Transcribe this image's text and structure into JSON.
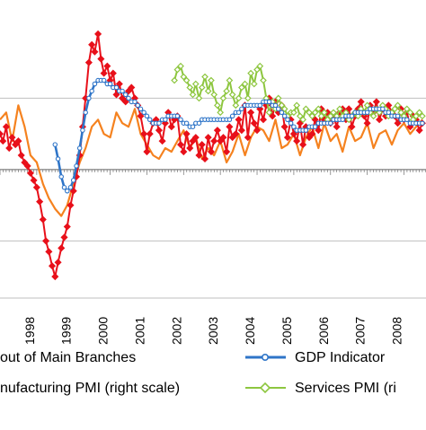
{
  "chart_data": {
    "type": "line",
    "title": "",
    "xlabel": "",
    "ylabel": "",
    "x_ticks": [
      "1998",
      "1999",
      "2000",
      "2001",
      "2002",
      "2003",
      "2004",
      "2005",
      "2006",
      "2007",
      "2008"
    ],
    "x_range": [
      1997.0,
      2008.6
    ],
    "y_range": [
      -3.6,
      4.4
    ],
    "y_gridlines": [
      2.0,
      -2.0
    ],
    "zero_line": 0,
    "grid": true,
    "legend_position": "bottom",
    "series": [
      {
        "name": "Output of Main Branches",
        "legend_label": "out of Main Branches",
        "color": "#e8101a",
        "marker": "diamond",
        "x": [
          1997.0,
          1997.08,
          1997.17,
          1997.25,
          1997.33,
          1997.42,
          1997.5,
          1997.58,
          1997.67,
          1997.75,
          1997.83,
          1997.92,
          1998.0,
          1998.08,
          1998.17,
          1998.25,
          1998.33,
          1998.42,
          1998.5,
          1998.58,
          1998.67,
          1998.75,
          1998.83,
          1998.92,
          1999.0,
          1999.08,
          1999.17,
          1999.25,
          1999.33,
          1999.42,
          1999.5,
          1999.58,
          1999.67,
          1999.75,
          1999.83,
          1999.92,
          2000.0,
          2000.08,
          2000.17,
          2000.25,
          2000.33,
          2000.42,
          2000.5,
          2000.58,
          2000.67,
          2000.75,
          2000.83,
          2000.92,
          2001.0,
          2001.08,
          2001.17,
          2001.25,
          2001.33,
          2001.42,
          2001.5,
          2001.58,
          2001.67,
          2001.75,
          2001.83,
          2001.92,
          2002.0,
          2002.08,
          2002.17,
          2002.25,
          2002.33,
          2002.42,
          2002.5,
          2002.58,
          2002.67,
          2002.75,
          2002.83,
          2002.92,
          2003.0,
          2003.08,
          2003.17,
          2003.25,
          2003.33,
          2003.42,
          2003.5,
          2003.58,
          2003.67,
          2003.75,
          2003.83,
          2003.92,
          2004.0,
          2004.08,
          2004.17,
          2004.25,
          2004.33,
          2004.42,
          2004.5,
          2004.58,
          2004.67,
          2004.75,
          2004.83,
          2004.92,
          2005.0,
          2005.08,
          2005.17,
          2005.25,
          2005.33,
          2005.42,
          2005.5,
          2005.58,
          2005.67,
          2005.75,
          2005.83,
          2005.92,
          2006.0,
          2006.08,
          2006.17,
          2006.25,
          2006.33,
          2006.42,
          2006.5,
          2006.58,
          2006.67,
          2006.75,
          2006.83,
          2006.92,
          2007.0,
          2007.08,
          2007.17,
          2007.25,
          2007.33,
          2007.42,
          2007.5,
          2007.58,
          2007.67,
          2007.75,
          2007.83,
          2007.92,
          2008.0,
          2008.08,
          2008.17,
          2008.25,
          2008.33,
          2008.42,
          2008.5
        ],
        "values": [
          1.0,
          0.8,
          1.2,
          0.6,
          0.9,
          0.7,
          0.8,
          0.4,
          0.2,
          0.1,
          -0.1,
          -0.3,
          -0.5,
          -0.9,
          -1.4,
          -2.0,
          -2.3,
          -2.7,
          -3.0,
          -2.6,
          -2.2,
          -1.9,
          -1.6,
          -1.0,
          -0.6,
          -0.2,
          0.4,
          1.2,
          2.0,
          3.0,
          3.5,
          3.3,
          3.8,
          3.1,
          2.7,
          2.9,
          2.5,
          2.7,
          2.1,
          2.4,
          2.0,
          1.9,
          2.2,
          2.3,
          2.0,
          1.8,
          1.5,
          1.0,
          0.5,
          1.0,
          1.3,
          1.4,
          1.1,
          0.8,
          1.3,
          1.6,
          1.2,
          1.4,
          1.5,
          0.7,
          0.5,
          1.0,
          0.6,
          0.8,
          0.9,
          0.4,
          0.7,
          0.3,
          0.9,
          0.5,
          0.8,
          1.1,
          0.8,
          0.9,
          0.5,
          1.2,
          0.9,
          1.0,
          1.4,
          1.1,
          1.8,
          0.9,
          1.6,
          1.3,
          1.1,
          1.7,
          1.4,
          1.8,
          2.0,
          1.5,
          1.9,
          1.6,
          1.8,
          1.2,
          0.9,
          1.4,
          1.0,
          0.8,
          1.3,
          0.7,
          1.2,
          0.9,
          1.0,
          1.4,
          1.1,
          1.7,
          1.4,
          1.6,
          1.3,
          1.5,
          1.2,
          1.6,
          1.7,
          1.4,
          1.7,
          1.2,
          1.5,
          1.7,
          1.9,
          1.5,
          1.3,
          1.8,
          1.6,
          1.9,
          1.4,
          1.7,
          1.5,
          1.8,
          1.6,
          1.5,
          1.3,
          1.7,
          1.4,
          1.6,
          1.2,
          1.5,
          1.4,
          1.1,
          1.3
        ]
      },
      {
        "name": "GDP Indicator",
        "legend_label": "GDP Indicator",
        "color": "#2f75c8",
        "marker": "circle",
        "x": [
          1998.5,
          1998.58,
          1998.67,
          1998.75,
          1998.83,
          1998.92,
          1999.0,
          1999.08,
          1999.17,
          1999.25,
          1999.33,
          1999.42,
          1999.5,
          1999.58,
          1999.67,
          1999.75,
          1999.83,
          1999.92,
          2000.0,
          2000.08,
          2000.17,
          2000.25,
          2000.33,
          2000.42,
          2000.5,
          2000.58,
          2000.67,
          2000.75,
          2000.83,
          2000.92,
          2001.0,
          2001.08,
          2001.17,
          2001.25,
          2001.33,
          2001.42,
          2001.5,
          2001.58,
          2001.67,
          2001.75,
          2001.83,
          2001.92,
          2002.0,
          2002.08,
          2002.17,
          2002.25,
          2002.33,
          2002.42,
          2002.5,
          2002.58,
          2002.67,
          2002.75,
          2002.83,
          2002.92,
          2003.0,
          2003.08,
          2003.17,
          2003.25,
          2003.33,
          2003.42,
          2003.5,
          2003.58,
          2003.67,
          2003.75,
          2003.83,
          2003.92,
          2004.0,
          2004.08,
          2004.17,
          2004.25,
          2004.33,
          2004.42,
          2004.5,
          2004.58,
          2004.67,
          2004.75,
          2004.83,
          2004.92,
          2005.0,
          2005.08,
          2005.17,
          2005.25,
          2005.33,
          2005.42,
          2005.5,
          2005.58,
          2005.67,
          2005.75,
          2005.83,
          2005.92,
          2006.0,
          2006.08,
          2006.17,
          2006.25,
          2006.33,
          2006.42,
          2006.5,
          2006.58,
          2006.67,
          2006.75,
          2006.83,
          2006.92,
          2007.0,
          2007.08,
          2007.17,
          2007.25,
          2007.33,
          2007.42,
          2007.5,
          2007.58,
          2007.67,
          2007.75,
          2007.83,
          2007.92,
          2008.0,
          2008.08,
          2008.17,
          2008.25,
          2008.33,
          2008.42,
          2008.5
        ],
        "values": [
          0.7,
          0.3,
          -0.2,
          -0.5,
          -0.6,
          -0.5,
          -0.3,
          0.1,
          0.6,
          1.1,
          1.6,
          2.0,
          2.2,
          2.4,
          2.5,
          2.5,
          2.5,
          2.4,
          2.4,
          2.3,
          2.3,
          2.2,
          2.2,
          2.1,
          2.0,
          1.9,
          1.9,
          1.8,
          1.7,
          1.6,
          1.5,
          1.4,
          1.3,
          1.3,
          1.3,
          1.4,
          1.4,
          1.5,
          1.5,
          1.5,
          1.5,
          1.4,
          1.3,
          1.3,
          1.2,
          1.2,
          1.3,
          1.3,
          1.4,
          1.4,
          1.4,
          1.4,
          1.4,
          1.4,
          1.4,
          1.4,
          1.4,
          1.4,
          1.5,
          1.6,
          1.6,
          1.7,
          1.8,
          1.8,
          1.8,
          1.8,
          1.8,
          1.8,
          1.9,
          1.9,
          1.9,
          1.8,
          1.8,
          1.7,
          1.6,
          1.5,
          1.4,
          1.3,
          1.2,
          1.1,
          1.1,
          1.1,
          1.1,
          1.2,
          1.2,
          1.2,
          1.3,
          1.3,
          1.3,
          1.3,
          1.3,
          1.4,
          1.4,
          1.4,
          1.4,
          1.5,
          1.5,
          1.5,
          1.6,
          1.6,
          1.6,
          1.6,
          1.6,
          1.7,
          1.7,
          1.7,
          1.7,
          1.7,
          1.6,
          1.6,
          1.5,
          1.5,
          1.5,
          1.4,
          1.4,
          1.4,
          1.3,
          1.3,
          1.3,
          1.3,
          1.3
        ]
      },
      {
        "name": "Manufacturing PMI (right scale)",
        "legend_label": "nufacturing PMI (right scale)",
        "color": "#f5821f",
        "marker": "none",
        "x": [
          1997.0,
          1997.17,
          1997.33,
          1997.5,
          1997.67,
          1997.83,
          1998.0,
          1998.17,
          1998.33,
          1998.5,
          1998.67,
          1998.83,
          1999.0,
          1999.17,
          1999.33,
          1999.5,
          1999.67,
          1999.83,
          2000.0,
          2000.17,
          2000.33,
          2000.5,
          2000.67,
          2000.83,
          2001.0,
          2001.17,
          2001.33,
          2001.5,
          2001.67,
          2001.83,
          2002.0,
          2002.17,
          2002.33,
          2002.5,
          2002.67,
          2002.83,
          2003.0,
          2003.17,
          2003.33,
          2003.5,
          2003.67,
          2003.83,
          2004.0,
          2004.17,
          2004.33,
          2004.5,
          2004.67,
          2004.83,
          2005.0,
          2005.17,
          2005.33,
          2005.5,
          2005.67,
          2005.83,
          2006.0,
          2006.17,
          2006.33,
          2006.5,
          2006.67,
          2006.83,
          2007.0,
          2007.17,
          2007.33,
          2007.5,
          2007.67,
          2007.83,
          2008.0,
          2008.17,
          2008.33,
          2008.5
        ],
        "values": [
          1.4,
          1.6,
          0.8,
          1.8,
          1.2,
          0.4,
          0.2,
          -0.4,
          -0.8,
          -1.1,
          -1.3,
          -1.0,
          -0.4,
          0.2,
          0.6,
          1.2,
          1.4,
          1.0,
          0.9,
          1.6,
          1.3,
          1.2,
          1.7,
          1.0,
          0.7,
          0.4,
          0.3,
          0.6,
          0.5,
          0.8,
          1.1,
          0.6,
          0.9,
          0.3,
          0.6,
          0.4,
          0.8,
          0.2,
          0.5,
          1.0,
          0.4,
          0.9,
          1.2,
          1.1,
          0.8,
          1.4,
          0.6,
          0.7,
          1.0,
          0.4,
          0.9,
          1.2,
          0.6,
          1.3,
          0.8,
          1.0,
          0.5,
          1.2,
          0.8,
          0.9,
          1.3,
          0.6,
          1.0,
          1.1,
          0.7,
          1.1,
          1.3,
          1.0,
          1.2,
          1.4
        ]
      },
      {
        "name": "Services PMI (right scale)",
        "legend_label": "Services PMI  (ri",
        "color": "#8dc63f",
        "marker": "diamond",
        "x": [
          2001.75,
          2001.83,
          2001.92,
          2002.0,
          2002.08,
          2002.17,
          2002.25,
          2002.33,
          2002.42,
          2002.5,
          2002.58,
          2002.67,
          2002.75,
          2002.83,
          2002.92,
          2003.0,
          2003.08,
          2003.17,
          2003.25,
          2003.33,
          2003.42,
          2003.5,
          2003.58,
          2003.67,
          2003.75,
          2003.83,
          2003.92,
          2004.0,
          2004.08,
          2004.17,
          2004.25,
          2004.33,
          2004.42,
          2004.5,
          2004.58,
          2004.67,
          2004.75,
          2004.83,
          2004.92,
          2005.0,
          2005.08,
          2005.17,
          2005.25,
          2005.33,
          2005.42,
          2005.5,
          2005.58,
          2005.67,
          2005.75,
          2005.83,
          2005.92,
          2006.0,
          2006.08,
          2006.17,
          2006.25,
          2006.33,
          2006.42,
          2006.5,
          2006.58,
          2006.67,
          2006.75,
          2006.83,
          2006.92,
          2007.0,
          2007.08,
          2007.17,
          2007.25,
          2007.33,
          2007.42,
          2007.5,
          2007.58,
          2007.67,
          2007.75,
          2007.83,
          2007.92,
          2008.0,
          2008.08,
          2008.17,
          2008.25,
          2008.33,
          2008.42,
          2008.5
        ],
        "values": [
          2.5,
          2.8,
          2.9,
          2.6,
          2.5,
          2.3,
          2.1,
          2.4,
          2.0,
          2.3,
          2.6,
          2.2,
          2.5,
          2.1,
          1.8,
          1.6,
          2.0,
          2.2,
          2.5,
          2.1,
          1.8,
          2.0,
          2.3,
          2.4,
          2.0,
          2.7,
          2.4,
          2.8,
          2.9,
          2.5,
          2.0,
          1.6,
          1.9,
          1.7,
          2.0,
          1.8,
          1.7,
          1.5,
          1.6,
          1.6,
          1.8,
          1.5,
          1.4,
          1.7,
          1.6,
          1.5,
          1.6,
          1.7,
          1.5,
          1.6,
          1.4,
          1.5,
          1.6,
          1.5,
          1.7,
          1.5,
          1.6,
          1.4,
          1.5,
          1.6,
          1.5,
          1.7,
          1.6,
          1.8,
          1.6,
          1.5,
          1.7,
          1.6,
          1.8,
          1.7,
          1.5,
          1.6,
          1.7,
          1.8,
          1.6,
          1.5,
          1.7,
          1.6,
          1.4,
          1.5,
          1.6,
          1.5
        ]
      }
    ]
  }
}
